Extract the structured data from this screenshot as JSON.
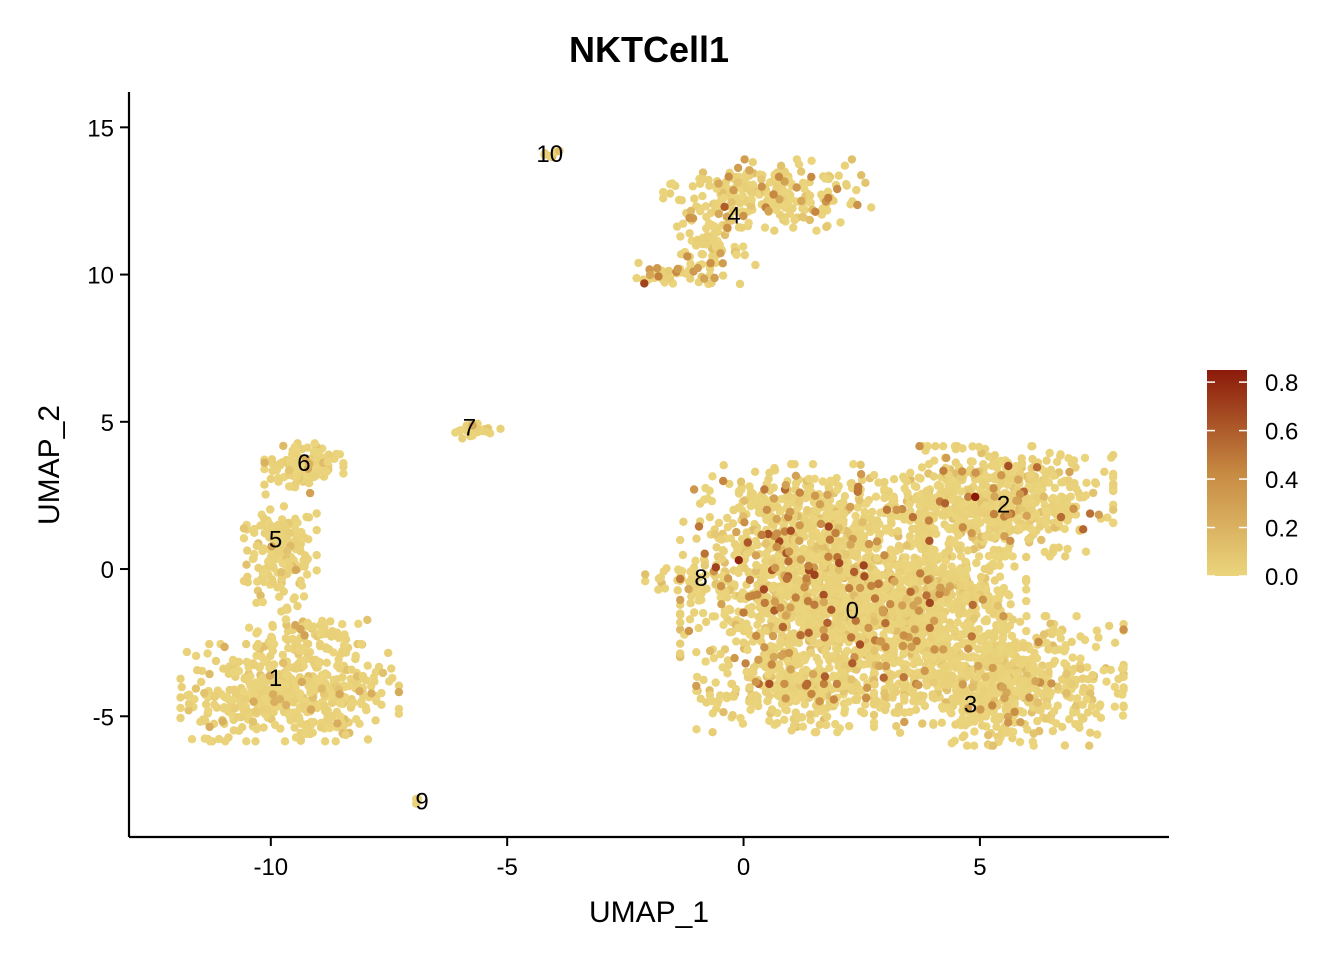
{
  "chart_data": {
    "type": "scatter",
    "title": "NKTCell1",
    "xlabel": "UMAP_1",
    "ylabel": "UMAP_2",
    "xlim": [
      -13,
      9
    ],
    "ylim": [
      -9.1,
      16.2
    ],
    "x_ticks": [
      -10,
      -5,
      0,
      5
    ],
    "x_tick_labels": [
      "-10",
      "-5",
      "0",
      "5"
    ],
    "y_ticks": [
      -5,
      0,
      5,
      10,
      15
    ],
    "y_tick_labels": [
      "-5",
      "0",
      "5",
      "10",
      "15"
    ],
    "grid": false,
    "legend_placement": "right",
    "color_scale": {
      "low": "#ebd57c",
      "mid": "#c78a42",
      "high": "#8b1a0a",
      "min": 0.0,
      "max": 0.85,
      "ticks": [
        0.0,
        0.2,
        0.4,
        0.6,
        0.8
      ],
      "tick_labels": [
        "0.0",
        "0.2",
        "0.4",
        "0.6",
        "0.8"
      ]
    },
    "clusters": [
      {
        "label": "0",
        "x": 2.3,
        "y": -1.4
      },
      {
        "label": "1",
        "x": -9.9,
        "y": -3.7
      },
      {
        "label": "2",
        "x": 5.5,
        "y": 2.2
      },
      {
        "label": "3",
        "x": 4.8,
        "y": -4.6
      },
      {
        "label": "4",
        "x": -0.2,
        "y": 12.0
      },
      {
        "label": "5",
        "x": -9.9,
        "y": 1.0
      },
      {
        "label": "6",
        "x": -9.3,
        "y": 3.6
      },
      {
        "label": "7",
        "x": -5.8,
        "y": 4.8
      },
      {
        "label": "8",
        "x": -0.9,
        "y": -0.3
      },
      {
        "label": "9",
        "x": -6.8,
        "y": -7.9
      },
      {
        "label": "10",
        "x": -4.1,
        "y": 14.1
      }
    ],
    "regions": [
      {
        "cluster": "1",
        "cx": -9.6,
        "cy": -4.2,
        "sx": 1.05,
        "sy": 0.75,
        "n": 520,
        "hi_frac": 0.02,
        "value_max": 0.2
      },
      {
        "cluster": "1",
        "cx": -9.2,
        "cy": -2.3,
        "sx": 0.6,
        "sy": 0.45,
        "n": 90,
        "hi_frac": 0.04,
        "value_max": 0.3
      },
      {
        "cluster": "5",
        "cx": -9.8,
        "cy": 0.6,
        "sx": 0.35,
        "sy": 0.9,
        "n": 170,
        "hi_frac": 0.06,
        "value_max": 0.35
      },
      {
        "cluster": "6",
        "cx": -9.3,
        "cy": 3.5,
        "sx": 0.38,
        "sy": 0.35,
        "n": 110,
        "hi_frac": 0.03,
        "value_max": 0.2
      },
      {
        "cluster": "7",
        "cx": -5.6,
        "cy": 4.7,
        "sx": 0.3,
        "sy": 0.12,
        "n": 28,
        "hi_frac": 0.05,
        "value_max": 0.2
      },
      {
        "cluster": "9",
        "cx": -6.9,
        "cy": -7.8,
        "sx": 0.06,
        "sy": 0.08,
        "n": 5,
        "hi_frac": 0.0,
        "value_max": 0.1
      },
      {
        "cluster": "10",
        "cx": -4.1,
        "cy": 14.1,
        "sx": 0.12,
        "sy": 0.1,
        "n": 6,
        "hi_frac": 0.0,
        "value_max": 0.1
      },
      {
        "cluster": "4",
        "cx": 0.5,
        "cy": 12.7,
        "sx": 1.0,
        "sy": 0.55,
        "n": 260,
        "hi_frac": 0.08,
        "value_max": 0.5
      },
      {
        "cluster": "4",
        "cx": -0.6,
        "cy": 11.0,
        "sx": 0.45,
        "sy": 0.6,
        "n": 80,
        "hi_frac": 0.07,
        "value_max": 0.45
      },
      {
        "cluster": "4",
        "cx": -1.5,
        "cy": 10.0,
        "sx": 0.5,
        "sy": 0.18,
        "n": 40,
        "hi_frac": 0.12,
        "value_max": 0.5
      },
      {
        "cluster": "8",
        "cx": -1.2,
        "cy": -0.3,
        "sx": 0.4,
        "sy": 0.25,
        "n": 30,
        "hi_frac": 0.05,
        "value_max": 0.2
      },
      {
        "cluster": "0",
        "cx": 1.3,
        "cy": -0.6,
        "sx": 1.2,
        "sy": 1.5,
        "n": 900,
        "hi_frac": 0.12,
        "value_max": 0.7
      },
      {
        "cluster": "0",
        "cx": 3.2,
        "cy": -1.5,
        "sx": 1.1,
        "sy": 1.3,
        "n": 650,
        "hi_frac": 0.06,
        "value_max": 0.55
      },
      {
        "cluster": "0",
        "cx": 1.5,
        "cy": 1.8,
        "sx": 1.1,
        "sy": 0.8,
        "n": 330,
        "hi_frac": 0.06,
        "value_max": 0.5
      },
      {
        "cluster": "2",
        "cx": 5.4,
        "cy": 2.3,
        "sx": 1.1,
        "sy": 0.85,
        "n": 620,
        "hi_frac": 0.05,
        "value_max": 0.6
      },
      {
        "cluster": "3",
        "cx": 5.4,
        "cy": -3.8,
        "sx": 1.2,
        "sy": 1.0,
        "n": 700,
        "hi_frac": 0.04,
        "value_max": 0.45
      },
      {
        "cluster": "0",
        "cx": 1.2,
        "cy": -4.0,
        "sx": 1.0,
        "sy": 0.7,
        "n": 320,
        "hi_frac": 0.05,
        "value_max": 0.45
      },
      {
        "cluster": "3",
        "cx": 4.0,
        "cy": -0.8,
        "sx": 0.9,
        "sy": 1.0,
        "n": 300,
        "hi_frac": 0.03,
        "value_max": 0.4
      }
    ],
    "highlight_points": [
      {
        "x": 4.9,
        "y": 2.45,
        "value": 0.85
      },
      {
        "x": -0.1,
        "y": 0.3,
        "value": 0.8
      },
      {
        "x": -2.1,
        "y": 9.7,
        "value": 0.7
      },
      {
        "x": -0.4,
        "y": 12.3,
        "value": 0.6
      },
      {
        "x": 5.6,
        "y": 3.5,
        "value": 0.65
      },
      {
        "x": 1.5,
        "y": -0.2,
        "value": 0.7
      },
      {
        "x": 2.3,
        "y": -3.2,
        "value": 0.6
      },
      {
        "x": 1.0,
        "y": 1.3,
        "value": 0.65
      }
    ]
  }
}
